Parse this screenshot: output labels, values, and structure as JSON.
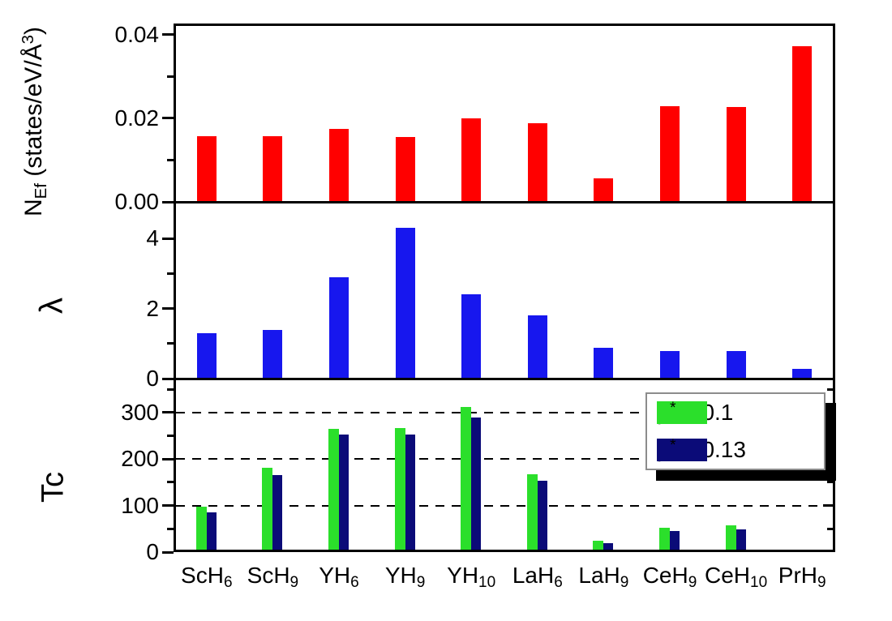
{
  "figure": {
    "background": "#FFFFFF",
    "axis_color": "#000000",
    "categories": [
      {
        "base": "ScH",
        "sub": "6"
      },
      {
        "base": "ScH",
        "sub": "9"
      },
      {
        "base": "YH",
        "sub": "6"
      },
      {
        "base": "YH",
        "sub": "9"
      },
      {
        "base": "YH",
        "sub": "10"
      },
      {
        "base": "LaH",
        "sub": "6"
      },
      {
        "base": "LaH",
        "sub": "9"
      },
      {
        "base": "CeH",
        "sub": "9"
      },
      {
        "base": "CeH",
        "sub": "10"
      },
      {
        "base": "PrH",
        "sub": "9"
      }
    ]
  },
  "chart_data": [
    {
      "type": "bar",
      "panel": "nef",
      "ylabel": "N_Ef (states/eV/A^3)",
      "ylabel_parts": [
        {
          "t": "N"
        },
        {
          "t": "Ef",
          "s": "sub"
        },
        {
          "t": " (states/eV/Å"
        },
        {
          "t": "3",
          "s": "sup"
        },
        {
          "t": ")"
        }
      ],
      "ylim": [
        0,
        0.0427
      ],
      "yticks_major": [
        {
          "v": 0,
          "label": "0.00"
        },
        {
          "v": 0.02,
          "label": "0.02"
        },
        {
          "v": 0.04,
          "label": "0.04"
        }
      ],
      "yticks_minor": [
        0.01,
        0.03
      ],
      "grid": "off",
      "bar_color": "#FF0000",
      "categories": [
        "ScH6",
        "ScH9",
        "YH6",
        "YH9",
        "YH10",
        "LaH6",
        "LaH9",
        "CeH9",
        "CeH10",
        "PrH9"
      ],
      "values": [
        0.0157,
        0.0157,
        0.0175,
        0.0155,
        0.02,
        0.0188,
        0.0056,
        0.0229,
        0.0227,
        0.0373
      ]
    },
    {
      "type": "bar",
      "panel": "lambda",
      "ylabel": "λ",
      "ylim": [
        0,
        5.05
      ],
      "yticks_major": [
        {
          "v": 0,
          "label": "0"
        },
        {
          "v": 2,
          "label": "2"
        },
        {
          "v": 4,
          "label": "4"
        }
      ],
      "yticks_minor": [
        1,
        3
      ],
      "grid": "off",
      "bar_color": "#1717EE",
      "categories": [
        "ScH6",
        "ScH9",
        "YH6",
        "YH9",
        "YH10",
        "LaH6",
        "LaH9",
        "CeH9",
        "CeH10",
        "PrH9"
      ],
      "values": [
        1.3,
        1.4,
        2.9,
        4.3,
        2.4,
        1.8,
        0.87,
        0.78,
        0.79,
        0.27
      ]
    },
    {
      "type": "bar",
      "panel": "tc",
      "ylabel": "Tc",
      "ylim": [
        0,
        373
      ],
      "yticks_major": [
        {
          "v": 0,
          "label": "0"
        },
        {
          "v": 100,
          "label": "100"
        },
        {
          "v": 200,
          "label": "200"
        },
        {
          "v": 300,
          "label": "300"
        }
      ],
      "yticks_minor": [
        50,
        150,
        250,
        350
      ],
      "gridlines_dashed": [
        100,
        200,
        300
      ],
      "legend_position": "upper right",
      "categories": [
        "ScH6",
        "ScH9",
        "YH6",
        "YH9",
        "YH10",
        "LaH6",
        "LaH9",
        "CeH9",
        "CeH10",
        "PrH9"
      ],
      "series": [
        {
          "name": "μ* = 0.1",
          "color": "#2BDF2B",
          "values": [
            98,
            181,
            265,
            267,
            312,
            168,
            25,
            52,
            57,
            0
          ]
        },
        {
          "name": "μ* = 0.13",
          "color": "#0B0B78",
          "values": [
            86,
            165,
            252,
            253,
            290,
            153,
            19,
            45,
            48,
            0
          ]
        }
      ],
      "legend": {
        "items": [
          {
            "color": "#2BDF2B",
            "label": "μ* = 0.1",
            "label_parts": [
              {
                "t": "μ"
              },
              {
                "t": "*",
                "s": "sup"
              },
              {
                "t": " = 0.1"
              }
            ]
          },
          {
            "color": "#0B0B78",
            "label": "μ* = 0.13",
            "label_parts": [
              {
                "t": "μ"
              },
              {
                "t": "*",
                "s": "sup"
              },
              {
                "t": " = 0.13"
              }
            ]
          }
        ]
      }
    }
  ]
}
